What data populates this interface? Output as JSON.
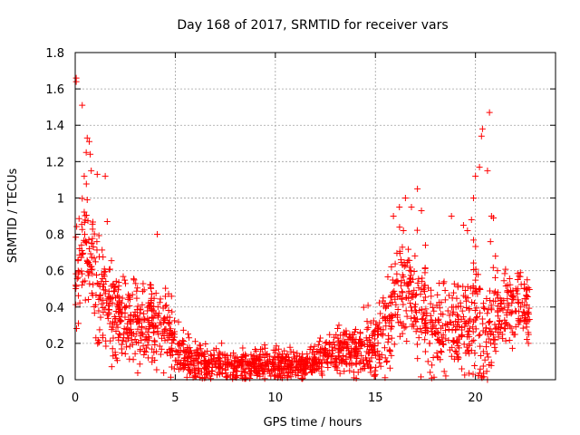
{
  "chart_data": {
    "type": "scatter",
    "title": "Day 168 of 2017, SRMTID for receiver vars",
    "xlabel": "GPS time / hours",
    "ylabel": "SRMTID / TECUs",
    "xlim": [
      0,
      24
    ],
    "ylim": [
      0,
      1.8
    ],
    "xticks": [
      0,
      5,
      10,
      15,
      20
    ],
    "yticks": [
      0,
      0.2,
      0.4,
      0.6,
      0.8,
      1,
      1.2,
      1.4,
      1.6,
      1.8
    ],
    "ytick_labels": [
      "0",
      "0.2",
      "0.4",
      "0.6",
      "0.8",
      "1",
      "1.2",
      "1.4",
      "1.6",
      "1.8"
    ],
    "grid": true,
    "marker": "+",
    "marker_color": "#ff0000",
    "series": [
      {
        "name": "SRMTID",
        "trend": {
          "x": [
            0,
            0.5,
            1,
            1.5,
            2,
            3,
            4,
            4.8,
            5.2,
            6,
            7,
            8,
            9,
            10,
            11,
            12,
            12.5,
            13,
            14,
            15,
            15.5,
            16,
            16.5,
            17,
            17.5,
            18,
            19,
            19.5,
            20,
            20.5,
            21,
            21.5,
            22,
            22.7
          ],
          "y": [
            0.62,
            0.72,
            0.58,
            0.42,
            0.36,
            0.32,
            0.3,
            0.27,
            0.15,
            0.1,
            0.08,
            0.07,
            0.08,
            0.08,
            0.08,
            0.1,
            0.13,
            0.16,
            0.16,
            0.18,
            0.3,
            0.45,
            0.55,
            0.42,
            0.32,
            0.28,
            0.28,
            0.3,
            0.35,
            0.2,
            0.35,
            0.4,
            0.4,
            0.38
          ]
        },
        "spread": {
          "x": [
            0,
            2,
            4.8,
            5.2,
            12,
            14,
            15.5,
            17,
            19,
            20,
            21,
            22.7
          ],
          "y": [
            0.18,
            0.12,
            0.1,
            0.05,
            0.04,
            0.07,
            0.12,
            0.15,
            0.12,
            0.2,
            0.12,
            0.08
          ]
        },
        "points_x": [
          0.05,
          0.05,
          0.35,
          0.6,
          0.7,
          0.75,
          0.55,
          0.8,
          1.1,
          0.45,
          0.6,
          1.5,
          1.6,
          4.1,
          15.9,
          16.2,
          16.5,
          16.8,
          17.1,
          17.3,
          16.4,
          17.5,
          18.8,
          19.4,
          19.6,
          19.8,
          19.9,
          20.0,
          20.2,
          20.3,
          20.35,
          20.6,
          20.7,
          20.8,
          20.9,
          20.75,
          20.6,
          21.0,
          21.1,
          20.3
        ],
        "points_y": [
          1.66,
          1.64,
          1.51,
          1.33,
          1.31,
          1.24,
          1.25,
          1.15,
          1.13,
          1.12,
          0.99,
          1.12,
          0.87,
          0.8,
          0.9,
          0.95,
          1.0,
          0.95,
          1.05,
          0.93,
          0.82,
          0.74,
          0.9,
          0.85,
          0.82,
          0.88,
          1.0,
          1.12,
          1.17,
          1.34,
          1.38,
          1.15,
          1.47,
          0.9,
          0.89,
          0.76,
          0.0,
          0.68,
          0.6,
          0.02
        ]
      }
    ]
  }
}
